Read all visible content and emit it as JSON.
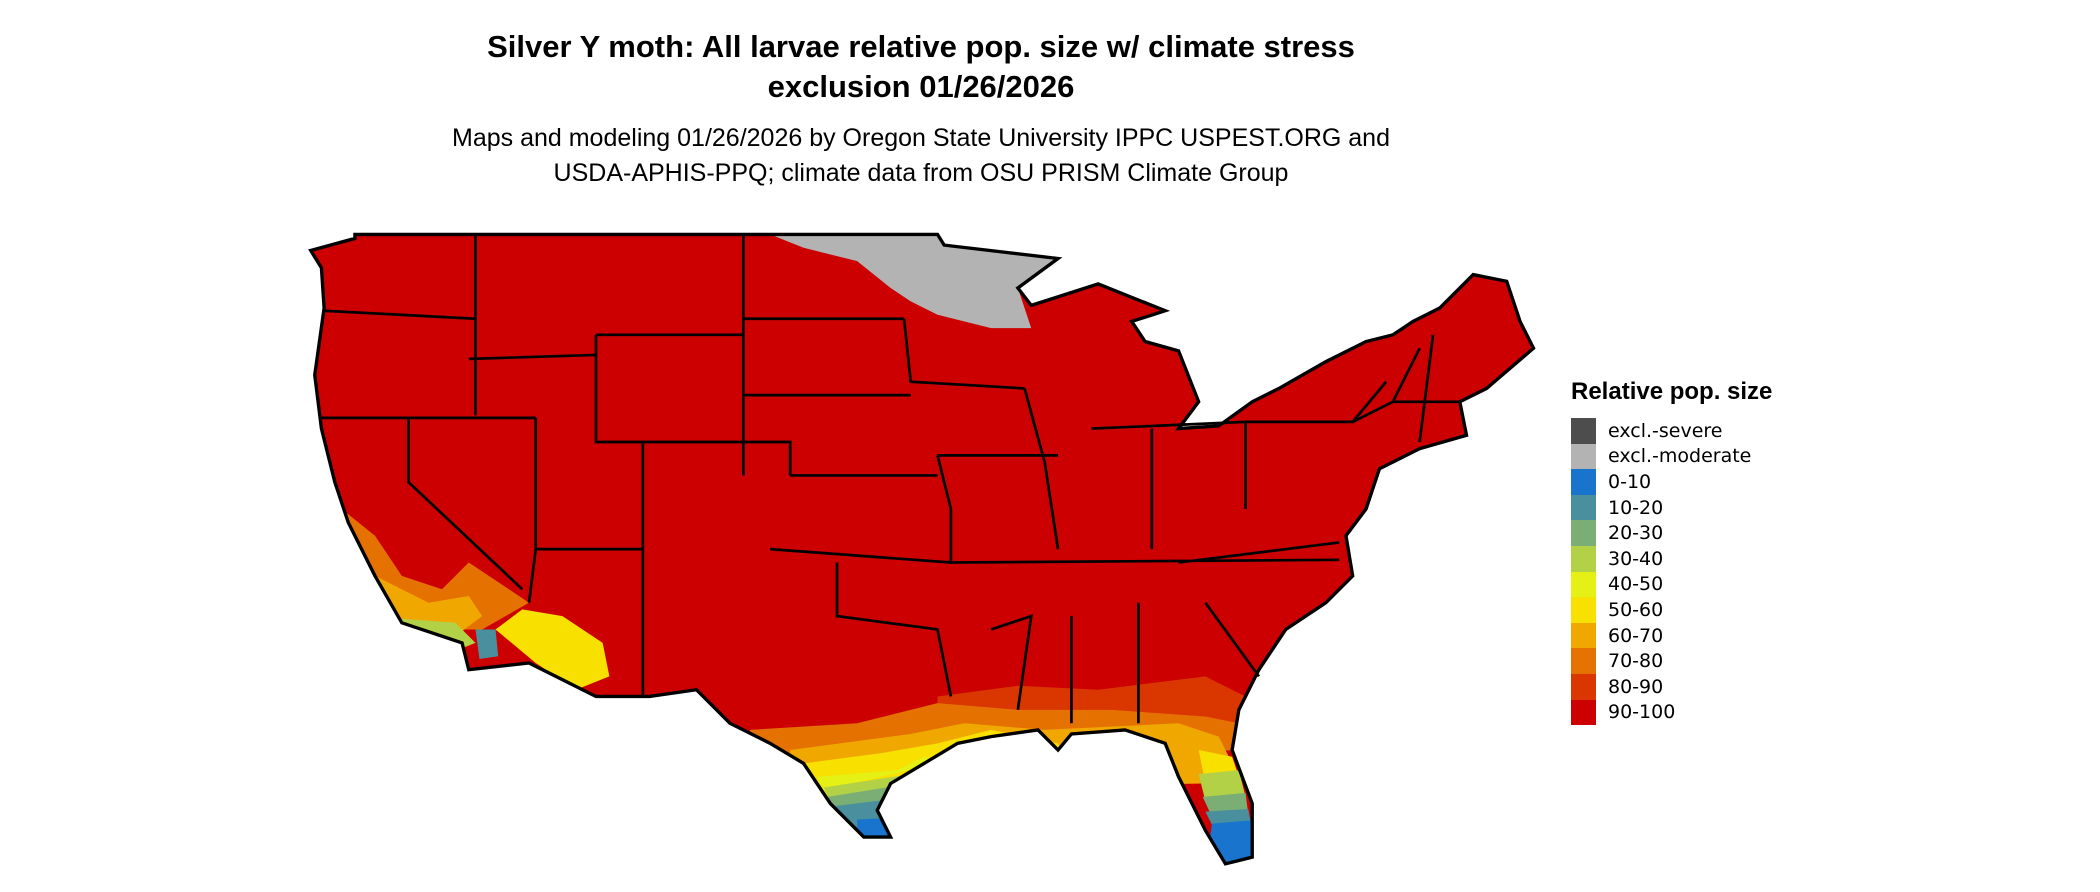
{
  "title": {
    "line1": "Silver Y moth: All larvae relative pop. size w/ climate stress",
    "line2": "exclusion 01/26/2026"
  },
  "subtitle": {
    "line1": "Maps and modeling 01/26/2026 by Oregon State University IPPC USPEST.ORG and",
    "line2": "USDA-APHIS-PPQ; climate data from OSU PRISM Climate Group"
  },
  "legend": {
    "title": "Relative pop. size",
    "items": [
      {
        "label": "excl.-severe",
        "color": "#4d4d4d"
      },
      {
        "label": "excl.-moderate",
        "color": "#b3b3b3"
      },
      {
        "label": "0-10",
        "color": "#1874cd"
      },
      {
        "label": "10-20",
        "color": "#4a8f9d"
      },
      {
        "label": "20-30",
        "color": "#7bae74"
      },
      {
        "label": "30-40",
        "color": "#b3d147"
      },
      {
        "label": "40-50",
        "color": "#e5f015"
      },
      {
        "label": "50-60",
        "color": "#f8e000"
      },
      {
        "label": "60-70",
        "color": "#f0a800"
      },
      {
        "label": "70-80",
        "color": "#e57200"
      },
      {
        "label": "80-90",
        "color": "#d93600"
      },
      {
        "label": "90-100",
        "color": "#cc0000"
      }
    ]
  },
  "map": {
    "region": "Contiguous United States",
    "dominant_class": "90-100",
    "excluded_moderate_region": "northern Minnesota / northern Wisconsin",
    "low_value_regions": [
      "southern Florida",
      "south Texas",
      "southern California",
      "southern Arizona"
    ]
  }
}
